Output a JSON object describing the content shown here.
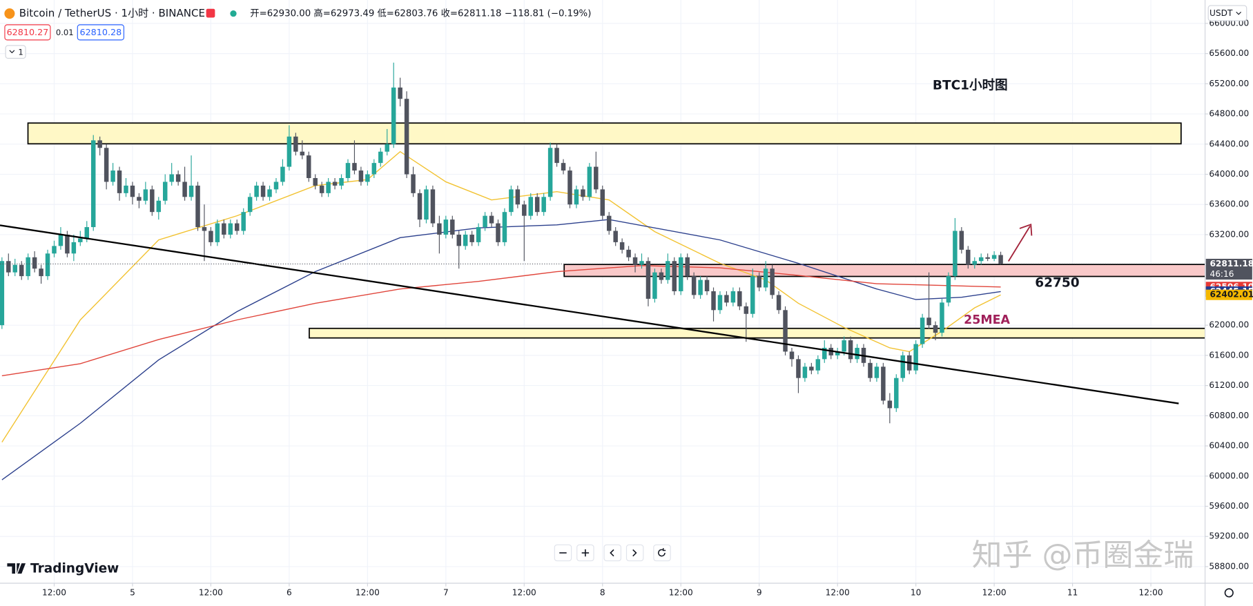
{
  "chart_data": {
    "type": "candlestick",
    "title": "Bitcoin / TetherUS · 1小时 · BINANCE",
    "subtitle": "开=62930.00 高=62973.49 低=62803.76 收=62811.18 −118.81 (−0.19%)",
    "bid": "62810.27",
    "spread": "0.01",
    "ask": "62810.28",
    "indicator_count": "1",
    "currency": "USDT",
    "brand": "TradingView",
    "watermark": "知乎 @币圈金瑞",
    "annotations": [
      "BTC1小时图",
      "62750",
      "25MEA"
    ],
    "up_color": "#26a69a",
    "down_color": "#50535e",
    "grid": true,
    "xlim": [
      3.7,
      188.3
    ],
    "ylim": [
      58580,
      66310
    ],
    "xticks": [
      {
        "value": 12,
        "label": "12:00"
      },
      {
        "value": 24,
        "label": "5"
      },
      {
        "value": 36,
        "label": "12:00"
      },
      {
        "value": 48,
        "label": "6"
      },
      {
        "value": 60,
        "label": "12:00"
      },
      {
        "value": 72,
        "label": "7"
      },
      {
        "value": 84,
        "label": "12:00"
      },
      {
        "value": 96,
        "label": "8"
      },
      {
        "value": 108,
        "label": "12:00"
      },
      {
        "value": 120,
        "label": "9"
      },
      {
        "value": 132,
        "label": "12:00"
      },
      {
        "value": 144,
        "label": "10"
      },
      {
        "value": 156,
        "label": "12:00"
      },
      {
        "value": 168,
        "label": "11"
      },
      {
        "value": 180,
        "label": "12:00"
      }
    ],
    "yticks": [
      {
        "value": 58800,
        "label": "58800.00"
      },
      {
        "value": 59200,
        "label": "59200.00"
      },
      {
        "value": 59600,
        "label": "59600.00"
      },
      {
        "value": 60000,
        "label": "60000.00"
      },
      {
        "value": 60400,
        "label": "60400.00"
      },
      {
        "value": 60800,
        "label": "60800.00"
      },
      {
        "value": 61200,
        "label": "61200.00"
      },
      {
        "value": 61600,
        "label": "61600.00"
      },
      {
        "value": 62000,
        "label": "62000.00"
      },
      {
        "value": 63200,
        "label": "63200.00"
      },
      {
        "value": 63600,
        "label": "63600.00"
      },
      {
        "value": 64000,
        "label": "64000.00"
      },
      {
        "value": 64400,
        "label": "64400.00"
      },
      {
        "value": 64800,
        "label": "64800.00"
      },
      {
        "value": 65200,
        "label": "65200.00"
      },
      {
        "value": 65600,
        "label": "65600.00"
      },
      {
        "value": 66000,
        "label": "66000.00"
      }
    ],
    "price_markers": [
      {
        "value": 62811.18,
        "countdown": "46:16",
        "color": "#50535e",
        "text_color": "#ffffff"
      },
      {
        "value": 62506.1,
        "label": "62506.10",
        "color": "#e53935",
        "text_color": "#ffffff"
      },
      {
        "value": 62445.15,
        "label": "62445.15",
        "color": "#233a8f",
        "text_color": "#ffffff"
      },
      {
        "value": 62402.01,
        "label": "62402.01",
        "color": "#f5b800",
        "text_color": "#1a1a1a"
      }
    ],
    "lines": [
      {
        "color": "#f2c230",
        "x": [
          4,
          16,
          28,
          40,
          52,
          60,
          65,
          72,
          79,
          89,
          97,
          104,
          114,
          121,
          126,
          133,
          140,
          143,
          148,
          153,
          157
        ],
        "values": [
          60450,
          62070,
          63130,
          63450,
          63850,
          63930,
          64300,
          63900,
          63660,
          63770,
          63660,
          63240,
          62820,
          62600,
          62290,
          61970,
          61700,
          61650,
          61920,
          62230,
          62402.01
        ]
      },
      {
        "color": "#2b3f8c",
        "x": [
          4,
          16,
          28,
          40,
          52,
          65,
          77,
          89,
          97,
          114,
          126,
          138,
          144,
          151,
          157
        ],
        "values": [
          59950,
          60700,
          61540,
          62180,
          62710,
          63160,
          63290,
          63330,
          63400,
          63130,
          62820,
          62480,
          62340,
          62370,
          62445.15
        ]
      },
      {
        "color": "#e0443a",
        "x": [
          4,
          16,
          28,
          40,
          52,
          65,
          77,
          89,
          102,
          114,
          126,
          138,
          157
        ],
        "values": [
          61330,
          61490,
          61810,
          62070,
          62290,
          62480,
          62580,
          62710,
          62790,
          62760,
          62660,
          62550,
          62506.1
        ]
      }
    ],
    "x": [
      4,
      5,
      6,
      7,
      8,
      9,
      10,
      11,
      12,
      13,
      14,
      15,
      16,
      17,
      18,
      19,
      20,
      21,
      22,
      23,
      24,
      25,
      26,
      27,
      28,
      29,
      30,
      31,
      32,
      33,
      34,
      35,
      36,
      37,
      38,
      39,
      40,
      41,
      42,
      43,
      44,
      45,
      46,
      47,
      48,
      49,
      50,
      51,
      52,
      53,
      54,
      55,
      56,
      57,
      58,
      59,
      60,
      61,
      62,
      63,
      64,
      65,
      66,
      67,
      68,
      69,
      70,
      71,
      72,
      73,
      74,
      75,
      76,
      77,
      78,
      79,
      80,
      81,
      82,
      83,
      84,
      85,
      86,
      87,
      88,
      89,
      90,
      91,
      92,
      93,
      94,
      95,
      96,
      97,
      98,
      99,
      100,
      101,
      102,
      103,
      104,
      105,
      106,
      107,
      108,
      109,
      110,
      111,
      112,
      113,
      114,
      115,
      116,
      117,
      118,
      119,
      120,
      121,
      122,
      123,
      124,
      125,
      126,
      127,
      128,
      129,
      130,
      131,
      132,
      133,
      134,
      135,
      136,
      137,
      138,
      139,
      140,
      141,
      142,
      143,
      144,
      145,
      146,
      147,
      148,
      149,
      150,
      151,
      152,
      153,
      154,
      155,
      156,
      157
    ],
    "ohlc": [
      [
        62000,
        62900,
        61950,
        62850
      ],
      [
        62850,
        62950,
        62650,
        62700
      ],
      [
        62700,
        62880,
        62650,
        62800
      ],
      [
        62800,
        62850,
        62600,
        62650
      ],
      [
        62650,
        62950,
        62600,
        62900
      ],
      [
        62900,
        62980,
        62700,
        62750
      ],
      [
        62750,
        62800,
        62550,
        62650
      ],
      [
        62650,
        63000,
        62600,
        62950
      ],
      [
        62950,
        63120,
        62900,
        63050
      ],
      [
        63050,
        63300,
        63000,
        63200
      ],
      [
        63200,
        63250,
        62900,
        62950
      ],
      [
        62950,
        63200,
        62850,
        63100
      ],
      [
        63100,
        63250,
        63050,
        63150
      ],
      [
        63150,
        63380,
        63100,
        63300
      ],
      [
        63300,
        64520,
        63250,
        64450
      ],
      [
        64450,
        64500,
        64250,
        64350
      ],
      [
        64350,
        64400,
        63800,
        63900
      ],
      [
        63900,
        64150,
        63850,
        64050
      ],
      [
        64050,
        64100,
        63650,
        63750
      ],
      [
        63750,
        63950,
        63700,
        63850
      ],
      [
        63850,
        63900,
        63600,
        63700
      ],
      [
        63700,
        63750,
        63550,
        63650
      ],
      [
        63650,
        63900,
        63600,
        63800
      ],
      [
        63800,
        63850,
        63450,
        63500
      ],
      [
        63500,
        63700,
        63400,
        63650
      ],
      [
        63650,
        64000,
        63600,
        63900
      ],
      [
        63900,
        64150,
        63850,
        64000
      ],
      [
        64000,
        64050,
        63850,
        63900
      ],
      [
        63900,
        64100,
        63650,
        63700
      ],
      [
        63700,
        64250,
        63650,
        63850
      ],
      [
        63850,
        63900,
        63250,
        63300
      ],
      [
        63300,
        63600,
        62850,
        63250
      ],
      [
        63250,
        63300,
        63050,
        63100
      ],
      [
        63100,
        63400,
        63050,
        63350
      ],
      [
        63350,
        63400,
        63150,
        63200
      ],
      [
        63200,
        63400,
        63150,
        63350
      ],
      [
        63350,
        63400,
        63200,
        63250
      ],
      [
        63250,
        63550,
        63200,
        63500
      ],
      [
        63500,
        63750,
        63450,
        63700
      ],
      [
        63700,
        63900,
        63650,
        63850
      ],
      [
        63850,
        63900,
        63650,
        63700
      ],
      [
        63700,
        63850,
        63650,
        63800
      ],
      [
        63800,
        63950,
        63750,
        63900
      ],
      [
        63900,
        64200,
        63850,
        64100
      ],
      [
        64100,
        64650,
        64050,
        64500
      ],
      [
        64500,
        64550,
        64250,
        64300
      ],
      [
        64300,
        64450,
        64200,
        64250
      ],
      [
        64250,
        64300,
        63900,
        63950
      ],
      [
        63950,
        64000,
        63800,
        63850
      ],
      [
        63850,
        63900,
        63700,
        63750
      ],
      [
        63750,
        63950,
        63700,
        63900
      ],
      [
        63900,
        63950,
        63800,
        63850
      ],
      [
        63850,
        64000,
        63800,
        63950
      ],
      [
        63950,
        64200,
        63900,
        64150
      ],
      [
        64150,
        64450,
        64000,
        64050
      ],
      [
        64050,
        64100,
        63850,
        63900
      ],
      [
        63900,
        64050,
        63850,
        64000
      ],
      [
        64000,
        64200,
        63950,
        64150
      ],
      [
        64150,
        64350,
        64100,
        64300
      ],
      [
        64300,
        64600,
        64250,
        64400
      ],
      [
        64400,
        65480,
        64350,
        65150
      ],
      [
        65150,
        65280,
        64900,
        65000
      ],
      [
        65000,
        65100,
        63950,
        64000
      ],
      [
        64000,
        64100,
        63700,
        63750
      ],
      [
        63750,
        63800,
        63300,
        63400
      ],
      [
        63400,
        63850,
        63350,
        63800
      ],
      [
        63800,
        63850,
        63300,
        63350
      ],
      [
        63350,
        63450,
        62950,
        63200
      ],
      [
        63200,
        63450,
        63150,
        63400
      ],
      [
        63400,
        63450,
        63150,
        63200
      ],
      [
        63200,
        63250,
        62750,
        63050
      ],
      [
        63050,
        63250,
        63000,
        63200
      ],
      [
        63200,
        63250,
        63050,
        63100
      ],
      [
        63100,
        63350,
        63050,
        63300
      ],
      [
        63300,
        63500,
        63250,
        63450
      ],
      [
        63450,
        63500,
        63300,
        63350
      ],
      [
        63350,
        63400,
        63050,
        63100
      ],
      [
        63100,
        63550,
        63050,
        63500
      ],
      [
        63500,
        63850,
        63450,
        63800
      ],
      [
        63800,
        63850,
        63550,
        63600
      ],
      [
        63600,
        63650,
        62850,
        63450
      ],
      [
        63450,
        63750,
        63400,
        63700
      ],
      [
        63700,
        63750,
        63450,
        63500
      ],
      [
        63500,
        63750,
        63450,
        63700
      ],
      [
        63700,
        64420,
        63650,
        64350
      ],
      [
        64350,
        64400,
        64100,
        64150
      ],
      [
        64150,
        64200,
        64000,
        64050
      ],
      [
        64050,
        64100,
        63550,
        63600
      ],
      [
        63600,
        63850,
        63550,
        63800
      ],
      [
        63800,
        63850,
        63650,
        63700
      ],
      [
        63700,
        64150,
        63650,
        64100
      ],
      [
        64100,
        64300,
        63750,
        63800
      ],
      [
        63800,
        63850,
        63400,
        63450
      ],
      [
        63450,
        63500,
        63200,
        63250
      ],
      [
        63250,
        63300,
        63050,
        63100
      ],
      [
        63100,
        63150,
        62950,
        63000
      ],
      [
        63000,
        63050,
        62850,
        62900
      ],
      [
        62900,
        62950,
        62700,
        62800
      ],
      [
        62800,
        62950,
        62750,
        62850
      ],
      [
        62850,
        62900,
        62250,
        62350
      ],
      [
        62350,
        62750,
        62300,
        62700
      ],
      [
        62700,
        62750,
        62550,
        62600
      ],
      [
        62600,
        62950,
        62550,
        62850
      ],
      [
        62850,
        62900,
        62400,
        62450
      ],
      [
        62450,
        62950,
        62400,
        62900
      ],
      [
        62900,
        62950,
        62600,
        62650
      ],
      [
        62650,
        62700,
        62350,
        62400
      ],
      [
        62400,
        62650,
        62350,
        62600
      ],
      [
        62600,
        62650,
        62400,
        62450
      ],
      [
        62450,
        62500,
        62050,
        62200
      ],
      [
        62200,
        62450,
        62150,
        62400
      ],
      [
        62400,
        62450,
        62250,
        62300
      ],
      [
        62300,
        62500,
        62250,
        62450
      ],
      [
        62450,
        62500,
        62200,
        62250
      ],
      [
        62250,
        62300,
        61780,
        62150
      ],
      [
        62150,
        62750,
        62100,
        62650
      ],
      [
        62650,
        62700,
        62450,
        62500
      ],
      [
        62500,
        62850,
        62450,
        62750
      ],
      [
        62750,
        62800,
        62350,
        62400
      ],
      [
        62400,
        62450,
        62150,
        62200
      ],
      [
        62200,
        62250,
        61600,
        61650
      ],
      [
        61650,
        61700,
        61450,
        61550
      ],
      [
        61550,
        61600,
        61100,
        61300
      ],
      [
        61300,
        61500,
        61250,
        61450
      ],
      [
        61450,
        61500,
        61350,
        61400
      ],
      [
        61400,
        61600,
        61350,
        61550
      ],
      [
        61550,
        61800,
        61500,
        61700
      ],
      [
        61700,
        61750,
        61550,
        61600
      ],
      [
        61600,
        61700,
        61550,
        61650
      ],
      [
        61650,
        61850,
        61600,
        61800
      ],
      [
        61800,
        61850,
        61500,
        61550
      ],
      [
        61550,
        61750,
        61500,
        61700
      ],
      [
        61700,
        61750,
        61450,
        61500
      ],
      [
        61500,
        61550,
        61250,
        61300
      ],
      [
        61300,
        61500,
        61250,
        61450
      ],
      [
        61450,
        61500,
        60950,
        61000
      ],
      [
        61000,
        61100,
        60700,
        60900
      ],
      [
        60900,
        61350,
        60850,
        61300
      ],
      [
        61300,
        61650,
        61250,
        61600
      ],
      [
        61600,
        61650,
        61350,
        61400
      ],
      [
        61400,
        61800,
        61350,
        61750
      ],
      [
        61750,
        62150,
        61700,
        62100
      ],
      [
        62100,
        62700,
        61950,
        62000
      ],
      [
        62000,
        62050,
        61800,
        61900
      ],
      [
        61900,
        62350,
        61850,
        62300
      ],
      [
        62300,
        62700,
        62250,
        62650
      ],
      [
        62650,
        63420,
        62600,
        63250
      ],
      [
        63250,
        63300,
        62950,
        63000
      ],
      [
        63000,
        63050,
        62750,
        62800
      ],
      [
        62800,
        62900,
        62750,
        62850
      ],
      [
        62850,
        62950,
        62800,
        62900
      ],
      [
        62900,
        62950,
        62850,
        62880
      ],
      [
        62880,
        62980,
        62850,
        62930
      ],
      [
        62930,
        62973.49,
        62803.76,
        62811.18
      ]
    ]
  }
}
